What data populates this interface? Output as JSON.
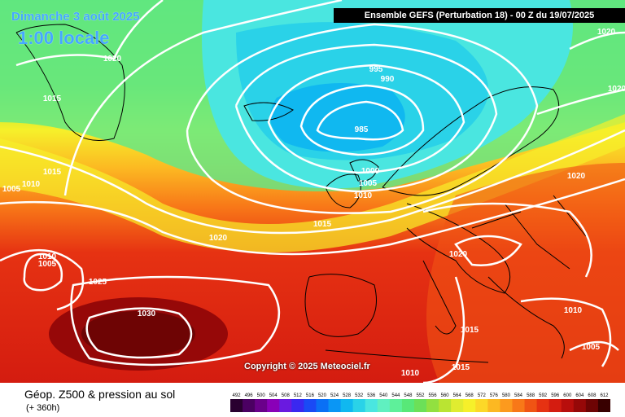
{
  "overlay": {
    "date": "Dimanche 3 août 2025",
    "time": "1:00 locale",
    "header": "Ensemble GEFS  (Perturbation 18)  -  00 Z du 19/07/2025",
    "copyright": "Copyright © 2025 Meteociel.fr"
  },
  "footer": {
    "title": "Géop. Z500 & pression au sol",
    "subtitle": "(+ 360h)"
  },
  "scale": {
    "ticks": [
      "492",
      "496",
      "500",
      "504",
      "508",
      "512",
      "516",
      "520",
      "524",
      "528",
      "532",
      "536",
      "540",
      "544",
      "548",
      "552",
      "556",
      "560",
      "564",
      "568",
      "572",
      "576",
      "580",
      "584",
      "588",
      "592",
      "596",
      "600",
      "604",
      "608",
      "612"
    ],
    "colors": [
      "#2a0030",
      "#4b0062",
      "#6a008a",
      "#8a00b8",
      "#6a1ae0",
      "#3a28f0",
      "#1a4af5",
      "#0a70f5",
      "#0a96f5",
      "#10b8f0",
      "#2ad2e8",
      "#4ae6e0",
      "#60f0c0",
      "#5ef09a",
      "#58e878",
      "#6ce058",
      "#92e040",
      "#bae432",
      "#e0ec30",
      "#f6f02a",
      "#fcd828",
      "#fcb822",
      "#fc9a1e",
      "#f87818",
      "#f05414",
      "#e63212",
      "#d41c10",
      "#b80e0c",
      "#960808",
      "#6e0404",
      "#380000"
    ]
  },
  "isobars": [
    {
      "label": "1020"
    },
    {
      "label": "1020"
    },
    {
      "label": "1015"
    },
    {
      "label": "1015"
    },
    {
      "label": "1005"
    },
    {
      "label": "1010"
    },
    {
      "label": "995"
    },
    {
      "label": "990"
    },
    {
      "label": "985"
    },
    {
      "label": "1000"
    },
    {
      "label": "1005"
    },
    {
      "label": "1010"
    },
    {
      "label": "1015"
    },
    {
      "label": "1020"
    },
    {
      "label": "1020"
    },
    {
      "label": "1020"
    },
    {
      "label": "1010"
    },
    {
      "label": "1005"
    },
    {
      "label": "1025"
    },
    {
      "label": "1030"
    },
    {
      "label": "1015"
    },
    {
      "label": "1015"
    },
    {
      "label": "1010"
    },
    {
      "label": "1010"
    },
    {
      "label": "1005"
    },
    {
      "label": "1020"
    },
    {
      "label": "102"
    }
  ]
}
